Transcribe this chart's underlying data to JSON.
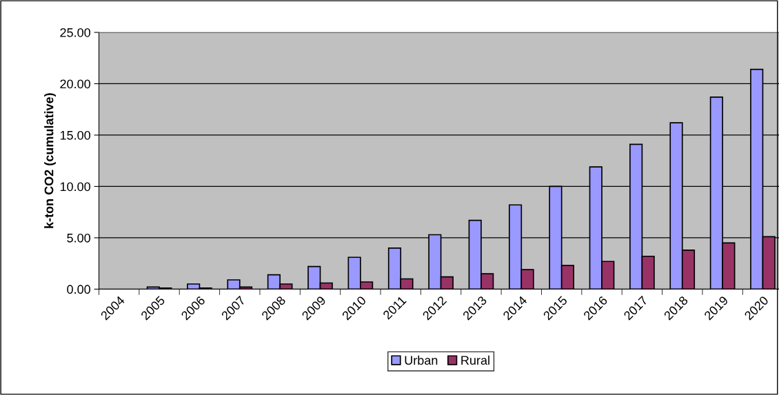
{
  "chart_data": {
    "type": "bar",
    "ylabel": "k-ton CO2 (cumulative)",
    "categories": [
      "2004",
      "2005",
      "2006",
      "2007",
      "2008",
      "2009",
      "2010",
      "2011",
      "2012",
      "2013",
      "2014",
      "2015",
      "2016",
      "2017",
      "2018",
      "2019",
      "2020"
    ],
    "series": [
      {
        "name": "Urban",
        "color": "#9999ff",
        "values": [
          null,
          0.2,
          0.5,
          0.9,
          1.4,
          2.2,
          3.1,
          4.0,
          5.3,
          6.7,
          8.2,
          10.0,
          11.9,
          14.1,
          16.2,
          18.7,
          21.4
        ]
      },
      {
        "name": "Rural",
        "color": "#993366",
        "values": [
          null,
          0.1,
          0.1,
          0.2,
          0.5,
          0.6,
          0.7,
          1.0,
          1.2,
          1.5,
          1.9,
          2.3,
          2.7,
          3.2,
          3.8,
          4.5,
          5.1
        ]
      }
    ],
    "ylim": [
      0,
      25
    ],
    "yticks": [
      {
        "value": 0,
        "label": "0.00"
      },
      {
        "value": 5,
        "label": "5.00"
      },
      {
        "value": 10,
        "label": "10.00"
      },
      {
        "value": 15,
        "label": "15.00"
      },
      {
        "value": 20,
        "label": "20.00"
      },
      {
        "value": 25,
        "label": "25.00"
      }
    ],
    "grid": "y",
    "legend": "bottom"
  }
}
